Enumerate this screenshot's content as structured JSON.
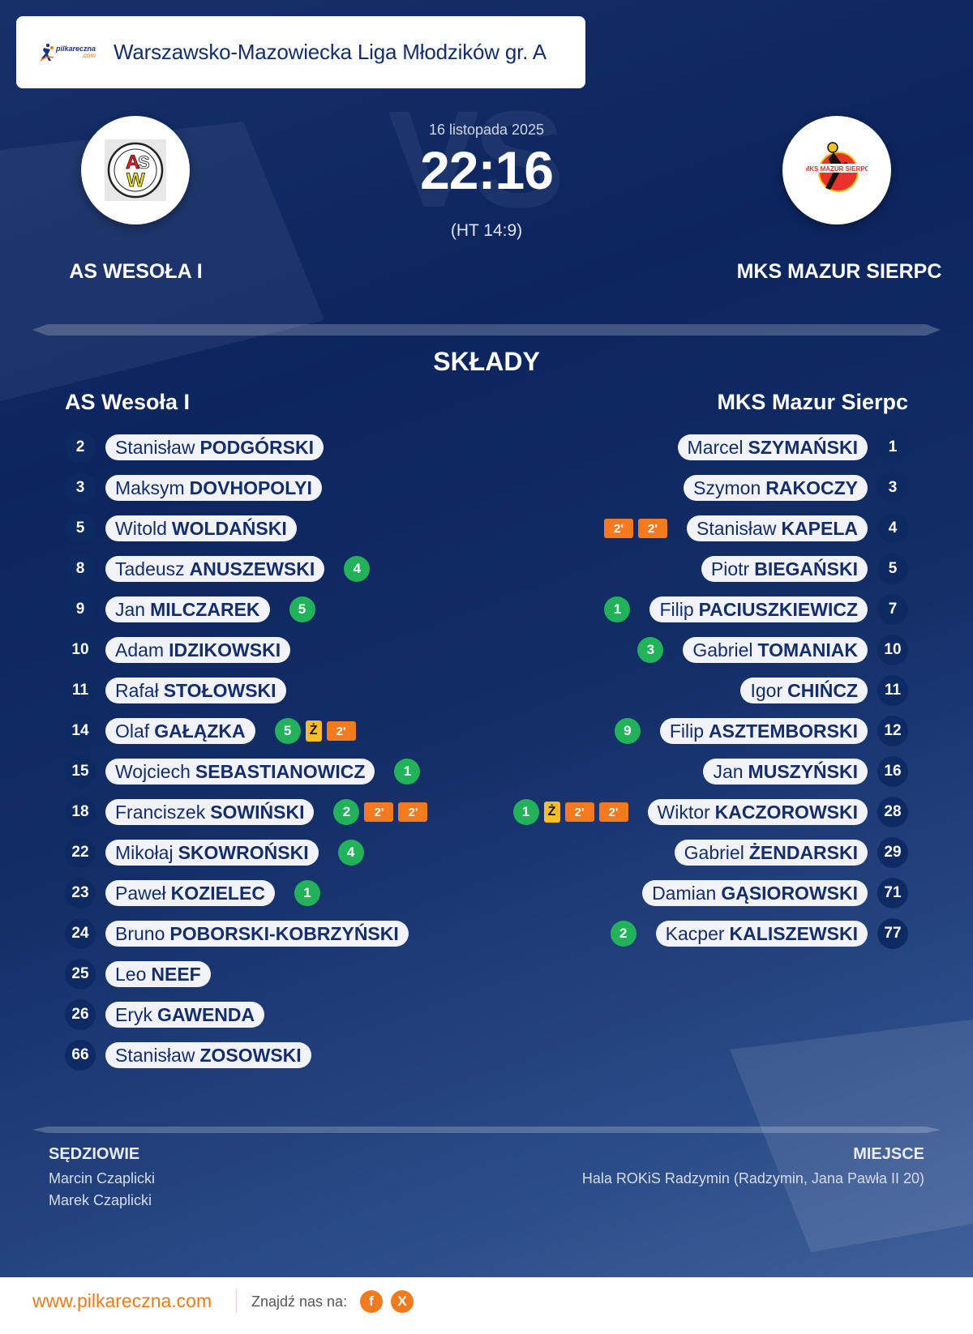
{
  "header": {
    "logo_text_top": "pilkareczna",
    "logo_text_bottom": ".com",
    "league_title": "Warszawsko-Mazowiecka Liga Młodzików gr. A"
  },
  "match": {
    "date": "16 listopada 2025",
    "score": "22:16",
    "halftime": "(HT 14:9)",
    "vs_watermark": "VS"
  },
  "home_team": {
    "name_upper": "AS WESOŁA I",
    "name": "AS Wesoła I",
    "crest": "asw-crest"
  },
  "away_team": {
    "name_upper": "MKS MAZUR SIERPC",
    "name": "MKS Mazur Sierpc",
    "crest": "mks-mazur-crest"
  },
  "lineups": {
    "title": "SKŁADY",
    "home": [
      {
        "number": "2",
        "first": "Stanisław",
        "last": "PODGÓRSKI",
        "events": []
      },
      {
        "number": "3",
        "first": "Maksym",
        "last": "DOVHOPOLYI",
        "events": []
      },
      {
        "number": "5",
        "first": "Witold",
        "last": "WOLDAŃSKI",
        "events": []
      },
      {
        "number": "8",
        "first": "Tadeusz",
        "last": "ANUSZEWSKI",
        "events": [
          {
            "type": "goals",
            "label": "4"
          }
        ]
      },
      {
        "number": "9",
        "first": "Jan",
        "last": "MILCZAREK",
        "events": [
          {
            "type": "goals",
            "label": "5"
          }
        ]
      },
      {
        "number": "10",
        "first": "Adam",
        "last": "IDZIKOWSKI",
        "events": []
      },
      {
        "number": "11",
        "first": "Rafał",
        "last": "STOŁOWSKI",
        "events": []
      },
      {
        "number": "14",
        "first": "Olaf",
        "last": "GAŁĄZKA",
        "events": [
          {
            "type": "goals",
            "label": "5"
          },
          {
            "type": "yellow",
            "label": "Ż"
          },
          {
            "type": "penalty",
            "label": "2'"
          }
        ]
      },
      {
        "number": "15",
        "first": "Wojciech",
        "last": "SEBASTIANOWICZ",
        "events": [
          {
            "type": "goals",
            "label": "1"
          }
        ]
      },
      {
        "number": "18",
        "first": "Franciszek",
        "last": "SOWIŃSKI",
        "events": [
          {
            "type": "goals",
            "label": "2"
          },
          {
            "type": "penalty",
            "label": "2'"
          },
          {
            "type": "penalty",
            "label": "2'"
          }
        ]
      },
      {
        "number": "22",
        "first": "Mikołaj",
        "last": "SKOWROŃSKI",
        "events": [
          {
            "type": "goals",
            "label": "4"
          }
        ]
      },
      {
        "number": "23",
        "first": "Paweł",
        "last": "KOZIELEC",
        "events": [
          {
            "type": "goals",
            "label": "1"
          }
        ]
      },
      {
        "number": "24",
        "first": "Bruno",
        "last": "POBORSKI-KOBRZYŃSKI",
        "events": []
      },
      {
        "number": "25",
        "first": "Leo",
        "last": "NEEF",
        "events": []
      },
      {
        "number": "26",
        "first": "Eryk",
        "last": "GAWENDA",
        "events": []
      },
      {
        "number": "66",
        "first": "Stanisław",
        "last": "ZOSOWSKI",
        "events": []
      }
    ],
    "away": [
      {
        "number": "1",
        "first": "Marcel",
        "last": "SZYMAŃSKI",
        "events": []
      },
      {
        "number": "3",
        "first": "Szymon",
        "last": "RAKOCZY",
        "events": []
      },
      {
        "number": "4",
        "first": "Stanisław",
        "last": "KAPELA",
        "events": [
          {
            "type": "penalty",
            "label": "2'"
          },
          {
            "type": "penalty",
            "label": "2'"
          }
        ]
      },
      {
        "number": "5",
        "first": "Piotr",
        "last": "BIEGAŃSKI",
        "events": []
      },
      {
        "number": "7",
        "first": "Filip",
        "last": "PACIUSZKIEWICZ",
        "events": [
          {
            "type": "goals",
            "label": "1"
          }
        ]
      },
      {
        "number": "10",
        "first": "Gabriel",
        "last": "TOMANIAK",
        "events": [
          {
            "type": "goals",
            "label": "3"
          }
        ]
      },
      {
        "number": "11",
        "first": "Igor",
        "last": "CHIŃCZ",
        "events": []
      },
      {
        "number": "12",
        "first": "Filip",
        "last": "ASZTEMBORSKI",
        "events": [
          {
            "type": "goals",
            "label": "9"
          }
        ]
      },
      {
        "number": "16",
        "first": "Jan",
        "last": "MUSZYŃSKI",
        "events": []
      },
      {
        "number": "28",
        "first": "Wiktor",
        "last": "KACZOROWSKI",
        "events": [
          {
            "type": "goals",
            "label": "1"
          },
          {
            "type": "yellow",
            "label": "Ż"
          },
          {
            "type": "penalty",
            "label": "2'"
          },
          {
            "type": "penalty",
            "label": "2'"
          }
        ]
      },
      {
        "number": "29",
        "first": "Gabriel",
        "last": "ŻENDARSKI",
        "events": []
      },
      {
        "number": "71",
        "first": "Damian",
        "last": "GĄSIOROWSKI",
        "events": []
      },
      {
        "number": "77",
        "first": "Kacper",
        "last": "KALISZEWSKI",
        "events": [
          {
            "type": "goals",
            "label": "2"
          }
        ]
      }
    ]
  },
  "officials": {
    "title": "SĘDZIOWIE",
    "names": [
      "Marcin Czaplicki",
      "Marek Czaplicki"
    ]
  },
  "venue": {
    "title": "MIEJSCE",
    "text": "Hala ROKiS Radzymin (Radzymin, Jana Pawła II 20)"
  },
  "footer": {
    "url": "www.pilkareczna.com",
    "find_us": "Znajdź nas na:",
    "social": [
      {
        "name": "facebook",
        "glyph": "f"
      },
      {
        "name": "x",
        "glyph": "X"
      }
    ]
  },
  "colors": {
    "background_navy": "#0c255e",
    "pill_bg": "#f1f3f9",
    "text_navy": "#142e6d",
    "goal_green": "#22b35a",
    "yellow_card": "#fbbd29",
    "penalty_orange": "#f47a1d",
    "brand_orange": "#f07a1b"
  }
}
